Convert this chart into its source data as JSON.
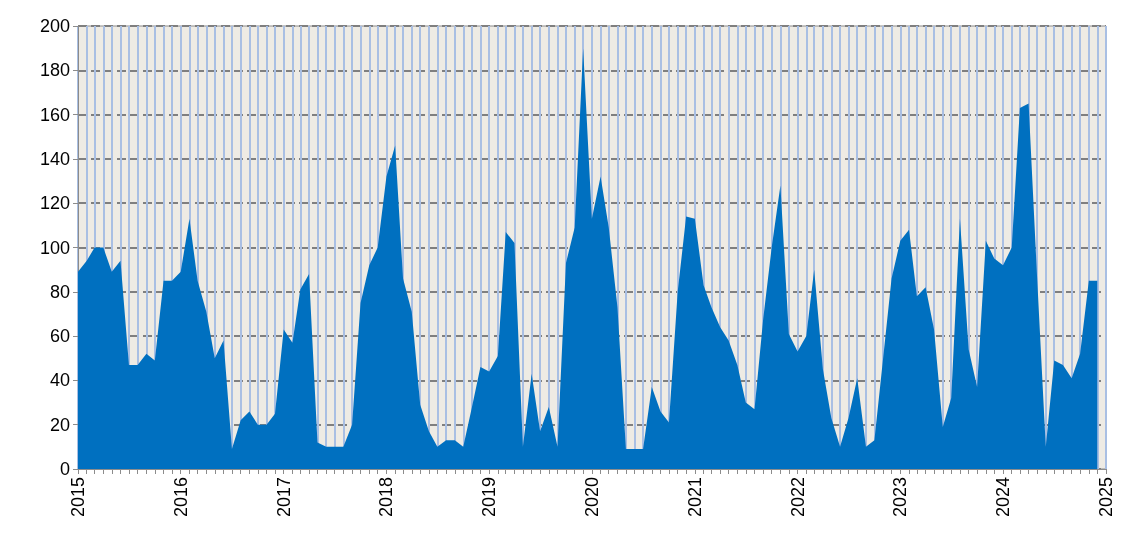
{
  "chart_data": {
    "type": "area",
    "x": [
      "2015-01",
      "2015-02",
      "2015-03",
      "2015-04",
      "2015-05",
      "2015-06",
      "2015-07",
      "2015-08",
      "2015-09",
      "2015-10",
      "2015-11",
      "2015-12",
      "2016-01",
      "2016-02",
      "2016-03",
      "2016-04",
      "2016-05",
      "2016-06",
      "2016-07",
      "2016-08",
      "2016-09",
      "2016-10",
      "2016-11",
      "2016-12",
      "2017-01",
      "2017-02",
      "2017-03",
      "2017-04",
      "2017-05",
      "2017-06",
      "2017-07",
      "2017-08",
      "2017-09",
      "2017-10",
      "2017-11",
      "2017-12",
      "2018-01",
      "2018-02",
      "2018-03",
      "2018-04",
      "2018-05",
      "2018-06",
      "2018-07",
      "2018-08",
      "2018-09",
      "2018-10",
      "2018-11",
      "2018-12",
      "2019-01",
      "2019-02",
      "2019-03",
      "2019-04",
      "2019-05",
      "2019-06",
      "2019-07",
      "2019-08",
      "2019-09",
      "2019-10",
      "2019-11",
      "2019-12",
      "2020-01",
      "2020-02",
      "2020-03",
      "2020-04",
      "2020-05",
      "2020-06",
      "2020-07",
      "2020-08",
      "2020-09",
      "2020-10",
      "2020-11",
      "2020-12",
      "2021-01",
      "2021-02",
      "2021-03",
      "2021-04",
      "2021-05",
      "2021-06",
      "2021-07",
      "2021-08",
      "2021-09",
      "2021-10",
      "2021-11",
      "2021-12",
      "2022-01",
      "2022-02",
      "2022-03",
      "2022-04",
      "2022-05",
      "2022-06",
      "2022-07",
      "2022-08",
      "2022-09",
      "2022-10",
      "2022-11",
      "2022-12",
      "2023-01",
      "2023-02",
      "2023-03",
      "2023-04",
      "2023-05",
      "2023-06",
      "2023-07",
      "2023-08",
      "2023-09",
      "2023-10",
      "2023-11",
      "2023-12",
      "2024-01",
      "2024-02",
      "2024-03",
      "2024-04",
      "2024-05",
      "2024-06",
      "2024-07",
      "2024-08",
      "2024-09",
      "2024-10",
      "2024-11",
      "2024-12"
    ],
    "values": [
      89,
      94,
      100,
      100,
      89,
      94,
      47,
      47,
      52,
      49,
      85,
      85,
      89,
      113,
      85,
      71,
      50,
      58,
      9,
      22,
      26,
      20,
      20,
      25,
      63,
      57,
      81,
      88,
      12,
      10,
      10,
      10,
      20,
      75,
      92,
      100,
      132,
      146,
      86,
      71,
      29,
      17,
      10,
      13,
      13,
      10,
      28,
      46,
      44,
      51,
      107,
      102,
      10,
      43,
      17,
      28,
      10,
      93,
      109,
      190,
      113,
      132,
      109,
      73,
      9,
      9,
      9,
      37,
      26,
      21,
      80,
      114,
      113,
      83,
      73,
      64,
      58,
      47,
      30,
      27,
      68,
      100,
      128,
      61,
      53,
      60,
      90,
      45,
      23,
      10,
      23,
      41,
      10,
      13,
      50,
      86,
      103,
      108,
      78,
      82,
      63,
      19,
      32,
      113,
      54,
      37,
      103,
      95,
      92,
      100,
      163,
      165,
      87,
      10,
      49,
      47,
      41,
      52,
      85,
      85
    ],
    "color": "#0070c0",
    "xlim": [
      "2015",
      "2025"
    ],
    "xticks": [
      "2015",
      "2016",
      "2017",
      "2018",
      "2019",
      "2020",
      "2021",
      "2022",
      "2023",
      "2024",
      "2025"
    ],
    "ylim": [
      0,
      200
    ],
    "yticks": [
      0,
      20,
      40,
      60,
      80,
      100,
      120,
      140,
      160,
      180,
      200
    ],
    "grid": true
  }
}
